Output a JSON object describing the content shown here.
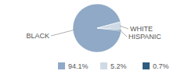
{
  "chart_data": {
    "type": "pie",
    "categories": [
      "BLACK",
      "WHITE",
      "HISPANIC"
    ],
    "values": [
      94.1,
      5.2,
      0.7
    ],
    "value_labels": [
      "94.1%",
      "5.2%",
      "0.7%"
    ],
    "colors": [
      "#8fa9c6",
      "#cfdae6",
      "#2e5d80"
    ]
  }
}
